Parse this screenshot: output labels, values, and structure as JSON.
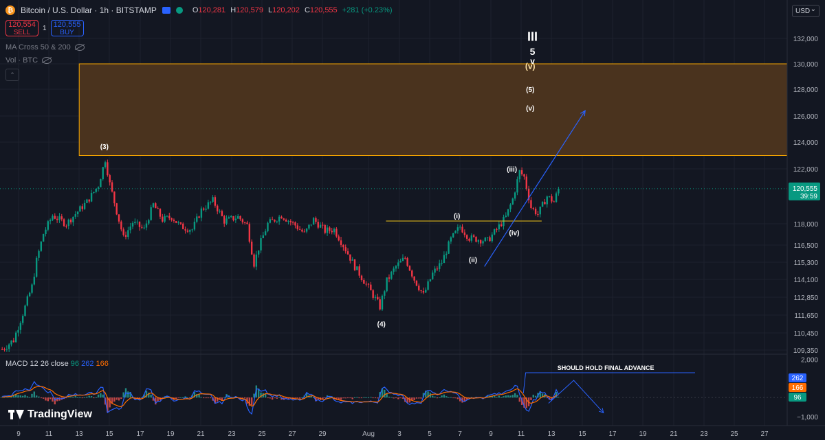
{
  "header": {
    "title": "Bitcoin / U.S. Dollar · 1h · BITSTAMP",
    "ohlc": {
      "o_label": "O",
      "o": "120,281",
      "h_label": "H",
      "h": "120,579",
      "l_label": "L",
      "l": "120,202",
      "c_label": "C",
      "c": "120,555",
      "change": "+281 (+0.23%)"
    }
  },
  "trade": {
    "sell_price": "120,554",
    "sell_label": "SELL",
    "spread": "1",
    "buy_price": "120,555",
    "buy_label": "BUY"
  },
  "indicators": [
    "MA Cross 50 & 200",
    "Vol · BTC"
  ],
  "currency_button": "USD",
  "macd_legend": {
    "name": "MACD 12 26 close",
    "v1": "96",
    "v2": "262",
    "v3": "166"
  },
  "logo_text": "TradingView",
  "colors": {
    "up": "#089981",
    "down": "#f23645",
    "macd": "#2962ff",
    "signal": "#ff6d00",
    "zone": "#4a331e",
    "zone_border": "#f7a600",
    "hline": "#f0c419",
    "accent": "#2962ff"
  },
  "chart_data": [
    {
      "type": "candlestick",
      "title": "",
      "y_scale": "price",
      "ylim": [
        109000,
        133000
      ],
      "y_ticks": [
        "109,350",
        "110,450",
        "111,650",
        "112,850",
        "114,100",
        "115,300",
        "116,500",
        "118,000",
        "122,000",
        "124,000",
        "126,000",
        "128,000",
        "130,000",
        "132,000"
      ],
      "x_ticks": [
        "9",
        "11",
        "13",
        "15",
        "17",
        "19",
        "21",
        "23",
        "25",
        "27",
        "29",
        "Aug",
        "3",
        "5",
        "7",
        "9",
        "11",
        "13",
        "15",
        "17",
        "19",
        "21",
        "23",
        "25",
        "27"
      ],
      "last_price": "120,555",
      "countdown": "39:59",
      "path": [
        [
          0,
          109400
        ],
        [
          5,
          110000
        ],
        [
          10,
          112200
        ],
        [
          13,
          113600
        ],
        [
          15,
          115400
        ],
        [
          18,
          117300
        ],
        [
          22,
          118600
        ],
        [
          28,
          118000
        ],
        [
          33,
          118900
        ],
        [
          37,
          119600
        ],
        [
          42,
          120800
        ],
        [
          45,
          122700
        ],
        [
          47,
          120900
        ],
        [
          50,
          118900
        ],
        [
          53,
          117000
        ],
        [
          57,
          118100
        ],
        [
          62,
          117600
        ],
        [
          66,
          119400
        ],
        [
          70,
          118300
        ],
        [
          74,
          118500
        ],
        [
          78,
          117800
        ],
        [
          83,
          117600
        ],
        [
          87,
          119000
        ],
        [
          92,
          119700
        ],
        [
          97,
          118200
        ],
        [
          103,
          118500
        ],
        [
          107,
          117900
        ],
        [
          110,
          115200
        ],
        [
          112,
          116300
        ],
        [
          116,
          118000
        ],
        [
          122,
          118600
        ],
        [
          128,
          117900
        ],
        [
          132,
          117300
        ],
        [
          136,
          118300
        ],
        [
          141,
          117500
        ],
        [
          145,
          117600
        ],
        [
          150,
          116200
        ],
        [
          154,
          115000
        ],
        [
          158,
          114000
        ],
        [
          162,
          113000
        ],
        [
          165,
          112200
        ],
        [
          168,
          114000
        ],
        [
          172,
          115000
        ],
        [
          176,
          115600
        ],
        [
          180,
          114100
        ],
        [
          184,
          113000
        ],
        [
          188,
          114500
        ],
        [
          192,
          115300
        ],
        [
          196,
          116900
        ],
        [
          200,
          117800
        ],
        [
          204,
          117000
        ],
        [
          208,
          116900
        ],
        [
          212,
          116800
        ],
        [
          216,
          117600
        ],
        [
          220,
          118500
        ],
        [
          223,
          119800
        ],
        [
          226,
          121800
        ],
        [
          228,
          121400
        ],
        [
          231,
          119200
        ],
        [
          234,
          118700
        ],
        [
          238,
          120000
        ],
        [
          241,
          119600
        ],
        [
          243,
          120555
        ]
      ],
      "annotations": [
        {
          "label": "III",
          "bar": 232,
          "price": 131800,
          "color": "#ffffff",
          "size": 18
        },
        {
          "label": "5",
          "bar": 232,
          "price": 130700,
          "color": "#ffffff",
          "size": 14
        },
        {
          "label": "v",
          "bar": 232,
          "price": 130000,
          "color": "#ffffff",
          "size": 12
        },
        {
          "label": "(v)",
          "bar": 231,
          "price": 129600,
          "color": "#ffe3a6",
          "size": 12
        },
        {
          "label": "(5)",
          "bar": 231,
          "price": 127800,
          "color": "#ffffff",
          "size": 10
        },
        {
          "label": "(v)",
          "bar": 231,
          "price": 126400,
          "color": "#ffffff",
          "size": 10
        },
        {
          "label": "(3)",
          "bar": 45,
          "price": 123500,
          "color": "#ffffff",
          "size": 10
        },
        {
          "label": "(iii)",
          "bar": 223,
          "price": 121800,
          "color": "#ffffff",
          "size": 10
        },
        {
          "label": "(i)",
          "bar": 199,
          "price": 118400,
          "color": "#ffffff",
          "size": 10
        },
        {
          "label": "(iv)",
          "bar": 224,
          "price": 117200,
          "color": "#ffffff",
          "size": 10
        },
        {
          "label": "(ii)",
          "bar": 206,
          "price": 115300,
          "color": "#ffffff",
          "size": 10
        },
        {
          "label": "(4)",
          "bar": 166,
          "price": 110900,
          "color": "#ffffff",
          "size": 10
        }
      ],
      "zone": {
        "bar_start": 34,
        "bar_end": 352,
        "price_high": 130000,
        "price_low": 123000
      },
      "hline": {
        "bar_start": 168,
        "bar_end": 236,
        "price": 118200
      },
      "trend_arrow": {
        "from": [
          211,
          115000
        ],
        "to": [
          255,
          126400
        ]
      }
    },
    {
      "type": "line",
      "title": "",
      "ylim": [
        -1400,
        2200
      ],
      "y_ticks": [
        "2,000",
        "−1,000"
      ],
      "series": [
        {
          "name": "",
          "color": "#2962ff"
        },
        {
          "name": "",
          "color": "#ff6d00"
        }
      ],
      "last_values": [
        "262",
        "166",
        "96"
      ],
      "annotation_text": "SHOULD HOLD FINAL ADVANCE",
      "annotation_level": 1300,
      "projection": [
        [
          239,
          -300
        ],
        [
          250,
          900
        ],
        [
          263,
          -800
        ]
      ]
    }
  ]
}
